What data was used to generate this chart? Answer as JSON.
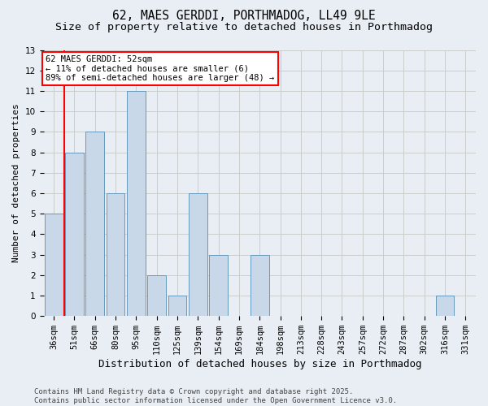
{
  "title1": "62, MAES GERDDI, PORTHMADOG, LL49 9LE",
  "title2": "Size of property relative to detached houses in Porthmadog",
  "xlabel": "Distribution of detached houses by size in Porthmadog",
  "ylabel": "Number of detached properties",
  "categories": [
    "36sqm",
    "51sqm",
    "66sqm",
    "80sqm",
    "95sqm",
    "110sqm",
    "125sqm",
    "139sqm",
    "154sqm",
    "169sqm",
    "184sqm",
    "198sqm",
    "213sqm",
    "228sqm",
    "243sqm",
    "257sqm",
    "272sqm",
    "287sqm",
    "302sqm",
    "316sqm",
    "331sqm"
  ],
  "values": [
    5,
    8,
    9,
    6,
    11,
    2,
    1,
    6,
    3,
    0,
    3,
    0,
    0,
    0,
    0,
    0,
    0,
    0,
    0,
    1,
    0
  ],
  "bar_color": "#c8d8e8",
  "bar_edge_color": "#6699bb",
  "bar_edge_width": 0.7,
  "red_line_bin": 1,
  "annotation_line1": "62 MAES GERDDI: 52sqm",
  "annotation_line2": "← 11% of detached houses are smaller (6)",
  "annotation_line3": "89% of semi-detached houses are larger (48) →",
  "ylim": [
    0,
    13
  ],
  "yticks": [
    0,
    1,
    2,
    3,
    4,
    5,
    6,
    7,
    8,
    9,
    10,
    11,
    12,
    13
  ],
  "grid_color": "#cccccc",
  "background_color": "#e8eef4",
  "footer_text": "Contains HM Land Registry data © Crown copyright and database right 2025.\nContains public sector information licensed under the Open Government Licence v3.0.",
  "title_fontsize": 10.5,
  "subtitle_fontsize": 9.5,
  "xlabel_fontsize": 9,
  "ylabel_fontsize": 8,
  "tick_fontsize": 7.5,
  "footer_fontsize": 6.5,
  "annot_fontsize": 7.5
}
